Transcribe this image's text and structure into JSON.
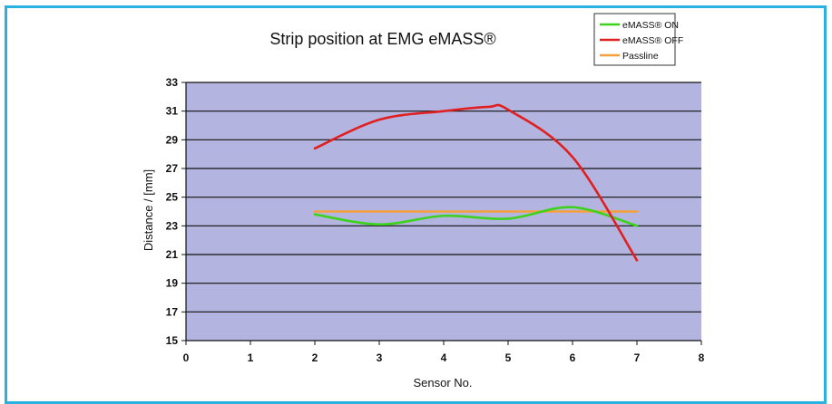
{
  "chart_data": {
    "type": "line",
    "title": "Strip position at EMG eMASS®",
    "xlabel": "Sensor No.",
    "ylabel": "Distance / [mm]",
    "xlim": [
      0,
      8
    ],
    "ylim": [
      15,
      33
    ],
    "x_ticks": [
      "0",
      "1",
      "2",
      "3",
      "4",
      "5",
      "6",
      "7",
      "8"
    ],
    "y_ticks": [
      "15",
      "17",
      "19",
      "21",
      "23",
      "25",
      "27",
      "29",
      "31",
      "33"
    ],
    "grid": "horizontal",
    "legend_position": "top-right",
    "plot_background": "#b4b4e0",
    "series": [
      {
        "name": "eMASS® ON",
        "color": "#3cd21e",
        "x": [
          2,
          3,
          4,
          5,
          6,
          7
        ],
        "y": [
          23.8,
          23.1,
          23.7,
          23.5,
          24.3,
          23.0
        ]
      },
      {
        "name": "eMASS® OFF",
        "color": "#e02020",
        "x": [
          2,
          3,
          4,
          4.7,
          5,
          6,
          7
        ],
        "y": [
          28.4,
          30.4,
          31.0,
          31.3,
          31.1,
          27.8,
          20.6
        ]
      },
      {
        "name": "Passline",
        "color": "#f5a03c",
        "x": [
          2,
          7
        ],
        "y": [
          24.0,
          24.0
        ]
      }
    ]
  }
}
